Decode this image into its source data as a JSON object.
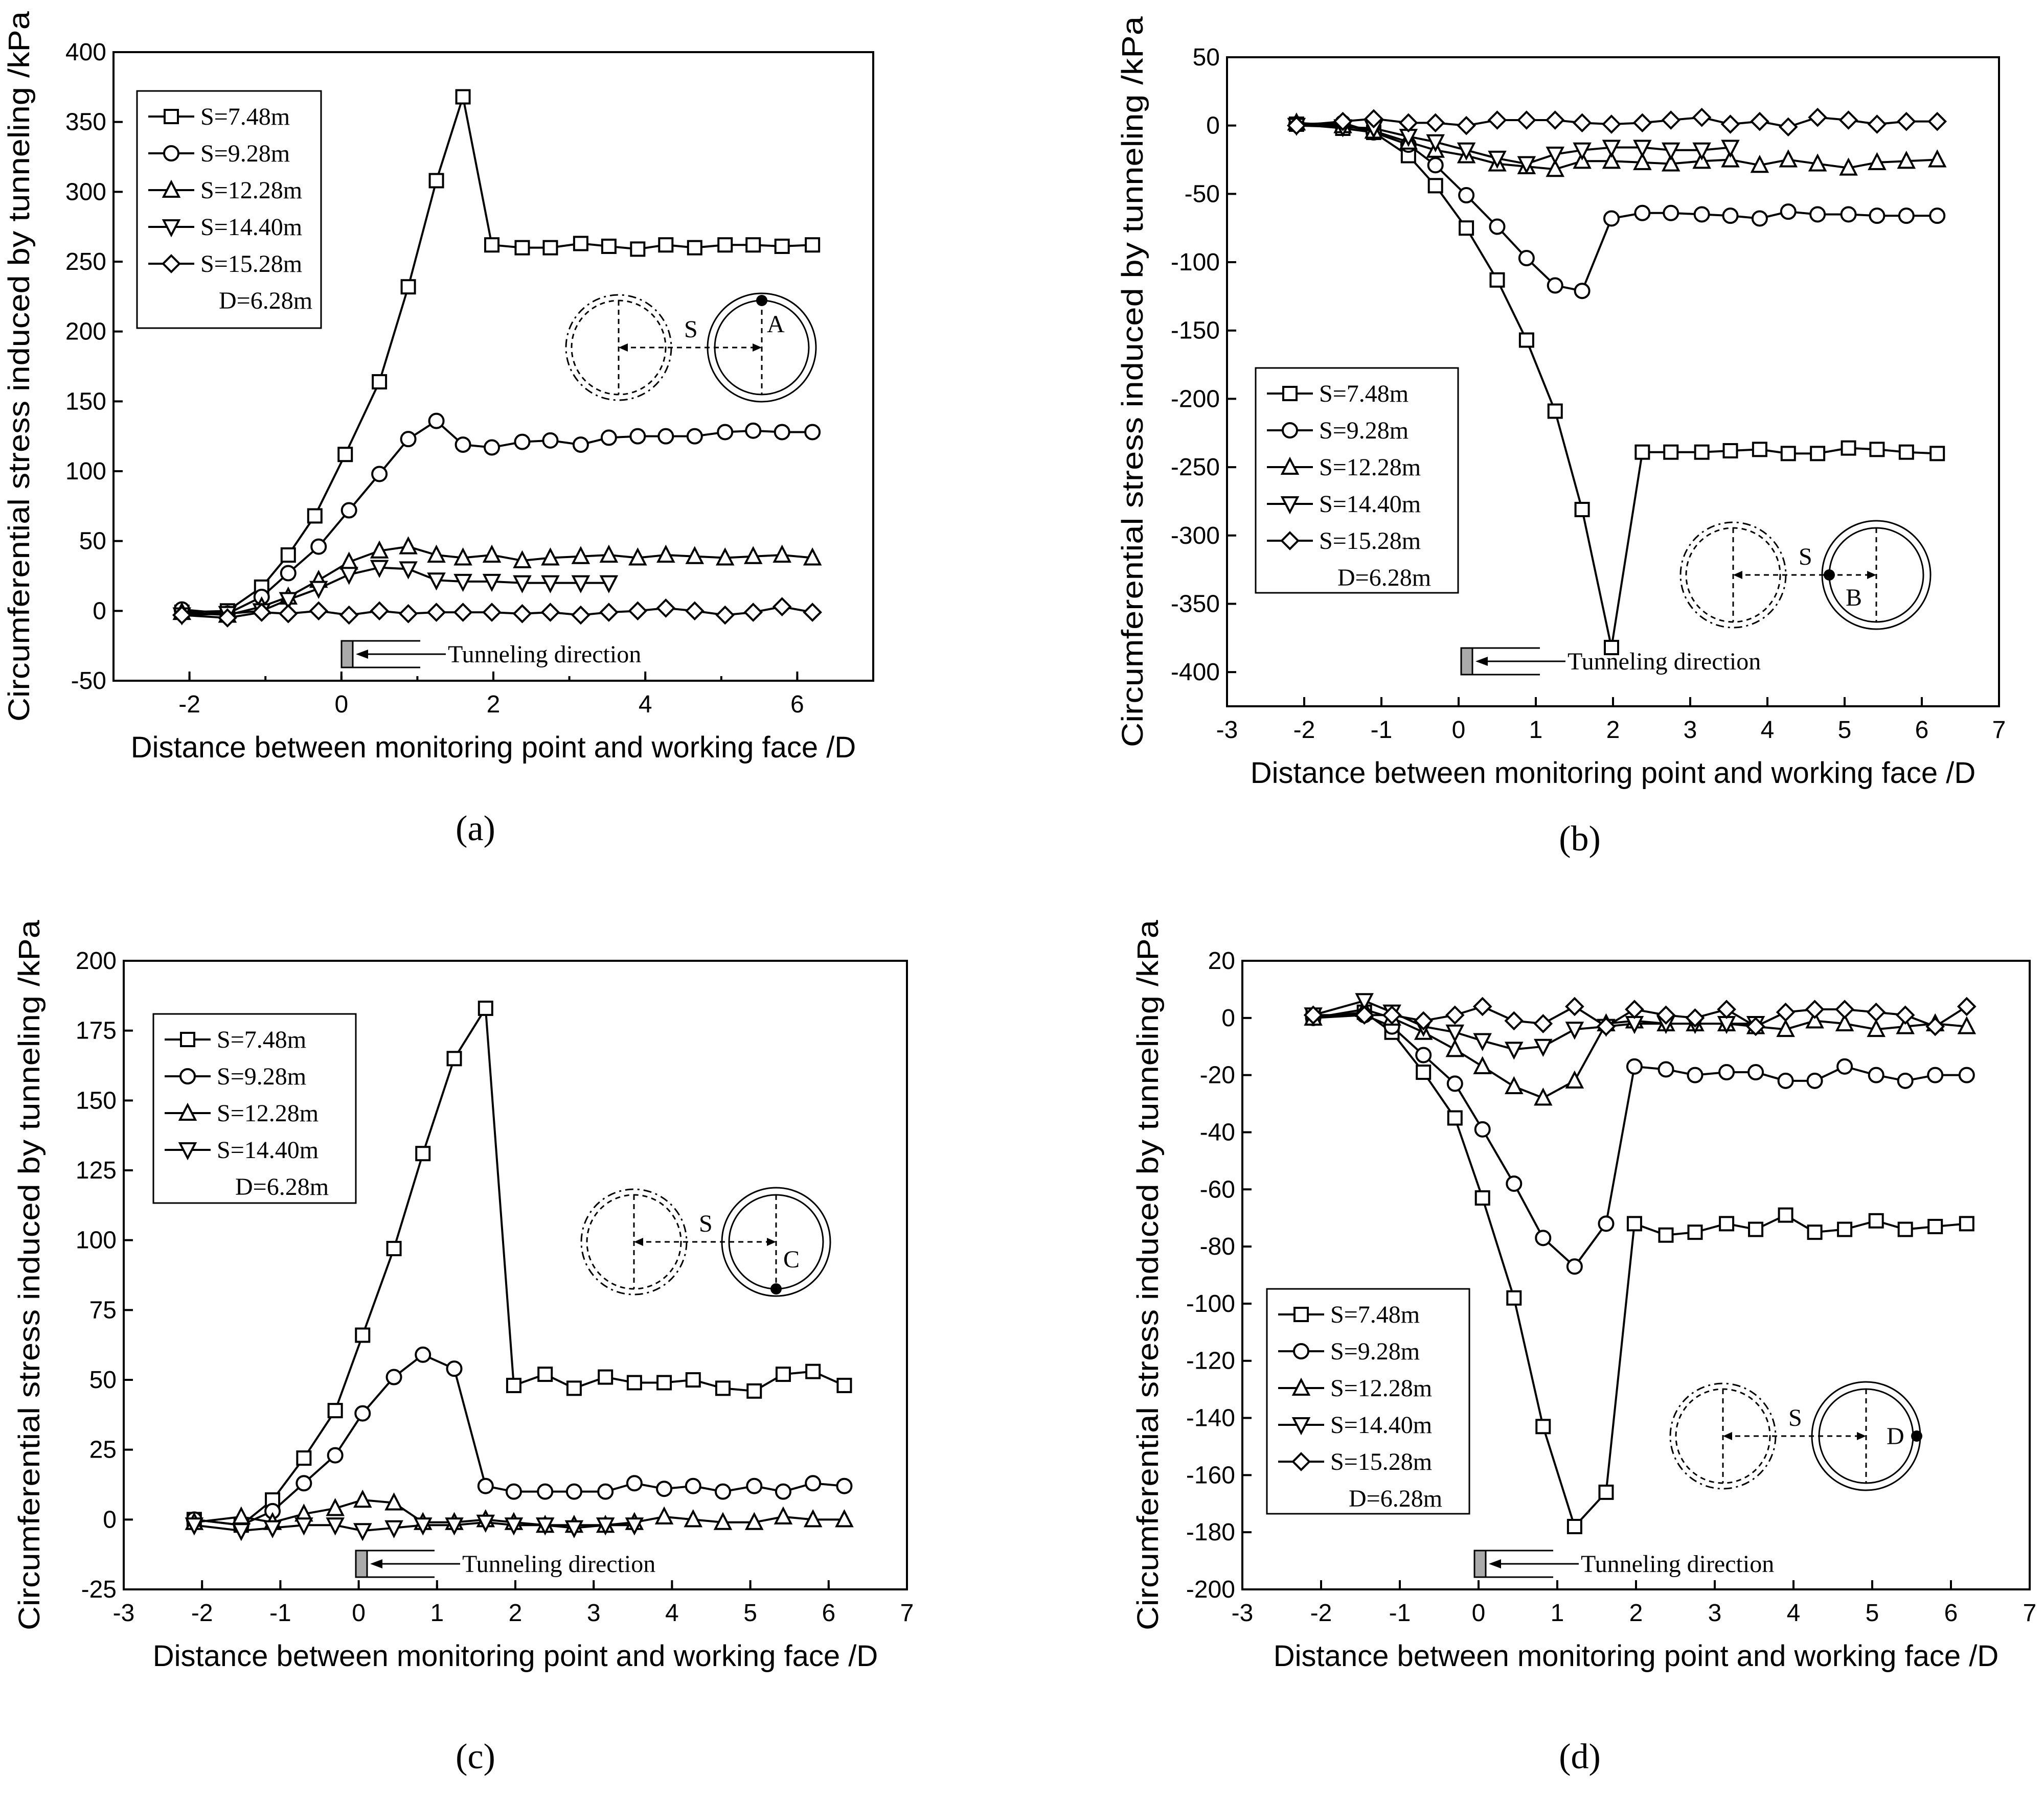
{
  "chart_data": [
    {
      "type": "line",
      "panel_label": "(a)",
      "xlabel": "Distance between monitoring point and working face /D",
      "ylabel": "Circumferential stress induced by tunneling /kPa",
      "xlim": [
        -3,
        7
      ],
      "ylim": [
        -50,
        400
      ],
      "xticks": [
        -2,
        0,
        2,
        4,
        6
      ],
      "yticks": [
        -50,
        0,
        50,
        100,
        150,
        200,
        250,
        300,
        350,
        400
      ],
      "legend": [
        "S=7.48m",
        "S=9.28m",
        "S=12.28m",
        "S=14.40m",
        "S=15.28m"
      ],
      "legend_note": "D=6.28m",
      "legend_position": "top-left",
      "inset": {
        "label_s": "S",
        "label_point": "A",
        "point_position": "top"
      },
      "direction_label": "Tunneling direction",
      "series": [
        {
          "name": "S=7.48m",
          "marker": "square",
          "x": [
            -2.1,
            -1.5,
            -1.05,
            -0.7,
            -0.35,
            0.05,
            0.5,
            0.88,
            1.25,
            1.6,
            1.98,
            2.38,
            2.75,
            3.15,
            3.52,
            3.9,
            4.27,
            4.65,
            5.05,
            5.42,
            5.8,
            6.2
          ],
          "y": [
            -1,
            0,
            17,
            40,
            68,
            112,
            164,
            232,
            308,
            368,
            262,
            260,
            260,
            263,
            261,
            259,
            262,
            260,
            262,
            262,
            261,
            262
          ]
        },
        {
          "name": "S=9.28m",
          "marker": "circle",
          "x": [
            -2.1,
            -1.5,
            -1.05,
            -0.7,
            -0.3,
            0.1,
            0.5,
            0.88,
            1.25,
            1.6,
            1.98,
            2.38,
            2.75,
            3.15,
            3.52,
            3.9,
            4.27,
            4.65,
            5.05,
            5.42,
            5.8,
            6.2
          ],
          "y": [
            1,
            -2,
            10,
            27,
            46,
            72,
            98,
            123,
            136,
            119,
            117,
            121,
            122,
            119,
            124,
            125,
            125,
            125,
            128,
            129,
            128,
            128
          ]
        },
        {
          "name": "S=12.28m",
          "marker": "triangle-up",
          "x": [
            -2.1,
            -1.5,
            -1.05,
            -0.7,
            -0.3,
            0.1,
            0.5,
            0.88,
            1.25,
            1.6,
            1.98,
            2.38,
            2.75,
            3.15,
            3.52,
            3.9,
            4.27,
            4.65,
            5.05,
            5.42,
            5.8,
            6.2
          ],
          "y": [
            -1,
            -3,
            3,
            10,
            22,
            35,
            43,
            46,
            40,
            38,
            40,
            36,
            38,
            39,
            40,
            38,
            40,
            39,
            38,
            39,
            40,
            38
          ]
        },
        {
          "name": "S=14.40m",
          "marker": "triangle-down",
          "x": [
            -2.1,
            -1.5,
            -1.05,
            -0.7,
            -0.3,
            0.1,
            0.5,
            0.88,
            1.25,
            1.6,
            1.98,
            2.38,
            2.75,
            3.15,
            3.52
          ],
          "y": [
            -3,
            -2,
            0,
            8,
            16,
            26,
            31,
            30,
            22,
            21,
            21,
            20,
            20,
            20,
            20
          ]
        },
        {
          "name": "S=15.28m",
          "marker": "diamond",
          "x": [
            -2.1,
            -1.5,
            -1.05,
            -0.7,
            -0.3,
            0.1,
            0.5,
            0.88,
            1.25,
            1.6,
            1.98,
            2.38,
            2.75,
            3.15,
            3.52,
            3.9,
            4.27,
            4.65,
            5.05,
            5.42,
            5.8,
            6.2
          ],
          "y": [
            -3,
            -5,
            -1,
            -2,
            0,
            -3,
            0,
            -2,
            -1,
            -1,
            -1,
            -2,
            -1,
            -3,
            -1,
            0,
            2,
            0,
            -3,
            -1,
            3,
            -1
          ]
        }
      ]
    },
    {
      "type": "line",
      "panel_label": "(b)",
      "xlabel": "Distance between monitoring point and working face /D",
      "ylabel": "Circumferential stress induced by tunneling /kPa",
      "xlim": [
        -3,
        7
      ],
      "ylim": [
        -425,
        50
      ],
      "xticks": [
        -3,
        -2,
        -1,
        0,
        1,
        2,
        3,
        4,
        5,
        6,
        7
      ],
      "yticks": [
        -400,
        -350,
        -300,
        -250,
        -200,
        -150,
        -100,
        -50,
        0,
        50
      ],
      "legend": [
        "S=7.48m",
        "S=9.28m",
        "S=12.28m",
        "S=14.40m",
        "S=15.28m"
      ],
      "legend_note": "D=6.28m",
      "legend_position": "lower-left",
      "inset": {
        "label_s": "S",
        "label_point": "B",
        "point_position": "left"
      },
      "direction_label": "Tunneling direction",
      "series": [
        {
          "name": "S=7.48m",
          "marker": "square",
          "x": [
            -2.1,
            -1.5,
            -1.1,
            -0.65,
            -0.3,
            0.1,
            0.5,
            0.88,
            1.25,
            1.6,
            1.98,
            2.38,
            2.75,
            3.15,
            3.52,
            3.9,
            4.27,
            4.65,
            5.05,
            5.42,
            5.8,
            6.2
          ],
          "y": [
            1,
            -2,
            -5,
            -22,
            -44,
            -75,
            -113,
            -157,
            -209,
            -281,
            -382,
            -239,
            -239,
            -239,
            -238,
            -237,
            -240,
            -240,
            -236,
            -237,
            -239,
            -240
          ]
        },
        {
          "name": "S=9.28m",
          "marker": "circle",
          "x": [
            -2.1,
            -1.5,
            -1.1,
            -0.65,
            -0.3,
            0.1,
            0.5,
            0.88,
            1.25,
            1.6,
            1.98,
            2.38,
            2.75,
            3.15,
            3.52,
            3.9,
            4.27,
            4.65,
            5.05,
            5.42,
            5.8,
            6.2
          ],
          "y": [
            1,
            2,
            -5,
            -14,
            -29,
            -51,
            -74,
            -97,
            -117,
            -121,
            -68,
            -64,
            -64,
            -65,
            -66,
            -68,
            -63,
            -65,
            -65,
            -66,
            -66,
            -66
          ]
        },
        {
          "name": "S=12.28m",
          "marker": "triangle-up",
          "x": [
            -2.1,
            -1.5,
            -1.1,
            -0.65,
            -0.3,
            0.1,
            0.5,
            0.88,
            1.25,
            1.6,
            1.98,
            2.38,
            2.75,
            3.15,
            3.52,
            3.9,
            4.27,
            4.65,
            5.05,
            5.42,
            5.8,
            6.2
          ],
          "y": [
            2,
            0,
            -4,
            -12,
            -18,
            -22,
            -28,
            -30,
            -32,
            -26,
            -26,
            -27,
            -28,
            -26,
            -25,
            -29,
            -25,
            -28,
            -31,
            -27,
            -26,
            -25
          ]
        },
        {
          "name": "S=14.40m",
          "marker": "triangle-down",
          "x": [
            -2.1,
            -1.5,
            -1.1,
            -0.65,
            -0.3,
            0.1,
            0.5,
            0.88,
            1.25,
            1.6,
            1.98,
            2.38,
            2.75,
            3.15,
            3.52
          ],
          "y": [
            0,
            -1,
            -2,
            -8,
            -12,
            -18,
            -24,
            -28,
            -21,
            -18,
            -16,
            -16,
            -18,
            -18,
            -16
          ]
        },
        {
          "name": "S=15.28m",
          "marker": "diamond",
          "x": [
            -2.1,
            -1.5,
            -1.1,
            -0.65,
            -0.3,
            0.1,
            0.5,
            0.88,
            1.25,
            1.6,
            1.98,
            2.38,
            2.75,
            3.15,
            3.52,
            3.9,
            4.27,
            4.65,
            5.05,
            5.42,
            5.8,
            6.2
          ],
          "y": [
            0,
            3,
            5,
            2,
            2,
            0,
            4,
            4,
            4,
            2,
            1,
            2,
            4,
            6,
            1,
            3,
            -1,
            6,
            4,
            1,
            3,
            3
          ]
        }
      ]
    },
    {
      "type": "line",
      "panel_label": "(c)",
      "xlabel": "Distance between monitoring point and working face /D",
      "ylabel": "Circumferential stress induced by tunneling /kPa",
      "xlim": [
        -3,
        7
      ],
      "ylim": [
        -25,
        200
      ],
      "xticks": [
        -3,
        -2,
        -1,
        0,
        1,
        2,
        3,
        4,
        5,
        6,
        7
      ],
      "yticks": [
        -25,
        0,
        25,
        50,
        75,
        100,
        125,
        150,
        175,
        200
      ],
      "legend": [
        "S=7.48m",
        "S=9.28m",
        "S=12.28m",
        "S=14.40m"
      ],
      "legend_note": "D=6.28m",
      "legend_position": "top-left",
      "inset": {
        "label_s": "S",
        "label_point": "C",
        "point_position": "bottom"
      },
      "direction_label": "Tunneling direction",
      "series": [
        {
          "name": "S=7.48m",
          "marker": "square",
          "x": [
            -2.1,
            -1.5,
            -1.1,
            -0.7,
            -0.3,
            0.05,
            0.45,
            0.82,
            1.22,
            1.62,
            1.98,
            2.38,
            2.75,
            3.15,
            3.52,
            3.9,
            4.27,
            4.65,
            5.05,
            5.42,
            5.8,
            6.2
          ],
          "y": [
            0,
            -2,
            7,
            22,
            39,
            66,
            97,
            131,
            165,
            183,
            48,
            52,
            47,
            51,
            49,
            49,
            50,
            47,
            46,
            52,
            53,
            48
          ]
        },
        {
          "name": "S=9.28m",
          "marker": "circle",
          "x": [
            -2.1,
            -1.5,
            -1.1,
            -0.7,
            -0.3,
            0.05,
            0.45,
            0.82,
            1.22,
            1.62,
            1.98,
            2.38,
            2.75,
            3.15,
            3.52,
            3.9,
            4.27,
            4.65,
            5.05,
            5.42,
            5.8,
            6.2
          ],
          "y": [
            0,
            -2,
            3,
            13,
            23,
            38,
            51,
            59,
            54,
            12,
            10,
            10,
            10,
            10,
            13,
            11,
            12,
            10,
            12,
            10,
            13,
            12
          ]
        },
        {
          "name": "S=12.28m",
          "marker": "triangle-up",
          "x": [
            -2.1,
            -1.5,
            -1.1,
            -0.7,
            -0.3,
            0.05,
            0.45,
            0.82,
            1.22,
            1.62,
            1.98,
            2.38,
            2.75,
            3.15,
            3.52,
            3.9,
            4.27,
            4.65,
            5.05,
            5.42,
            5.8,
            6.2
          ],
          "y": [
            -1,
            1,
            -1,
            2,
            4,
            7,
            6,
            -1,
            -1,
            0,
            -1,
            -2,
            -2,
            -2,
            -1,
            1,
            0,
            -1,
            -1,
            1,
            0,
            0
          ]
        },
        {
          "name": "S=14.40m",
          "marker": "triangle-down",
          "x": [
            -2.1,
            -1.5,
            -1.1,
            -0.7,
            -0.3,
            0.05,
            0.45,
            0.82,
            1.22,
            1.62,
            1.98,
            2.38,
            2.75,
            3.15,
            3.52
          ],
          "y": [
            -2,
            -4,
            -3,
            -2,
            -2,
            -4,
            -3,
            -2,
            -2,
            -1,
            -2,
            -2,
            -3,
            -2,
            -2
          ]
        }
      ]
    },
    {
      "type": "line",
      "panel_label": "(d)",
      "xlabel": "Distance between monitoring point and working face /D",
      "ylabel": "Circumferential stress induced by tunneling /kPa",
      "xlim": [
        -3,
        7
      ],
      "ylim": [
        -200,
        20
      ],
      "xticks": [
        -3,
        -2,
        -1,
        0,
        1,
        2,
        3,
        4,
        5,
        6,
        7
      ],
      "yticks": [
        -200,
        -180,
        -160,
        -140,
        -120,
        -100,
        -80,
        -60,
        -40,
        -20,
        0,
        20
      ],
      "legend": [
        "S=7.48m",
        "S=9.28m",
        "S=12.28m",
        "S=14.40m",
        "S=15.28m"
      ],
      "legend_note": "D=6.28m",
      "legend_position": "lower-left",
      "inset": {
        "label_s": "S",
        "label_point": "D",
        "point_position": "right"
      },
      "direction_label": "Tunneling direction",
      "series": [
        {
          "name": "S=7.48m",
          "marker": "square",
          "x": [
            -2.1,
            -1.45,
            -1.1,
            -0.7,
            -0.3,
            0.05,
            0.45,
            0.82,
            1.22,
            1.62,
            1.98,
            2.38,
            2.75,
            3.15,
            3.52,
            3.9,
            4.27,
            4.65,
            5.05,
            5.42,
            5.8,
            6.2
          ],
          "y": [
            0,
            2,
            -5,
            -19,
            -35,
            -63,
            -98,
            -143,
            -178,
            -166,
            -72,
            -76,
            -75,
            -72,
            -74,
            -69,
            -75,
            -74,
            -71,
            -74,
            -73,
            -72
          ]
        },
        {
          "name": "S=9.28m",
          "marker": "circle",
          "x": [
            -2.1,
            -1.45,
            -1.1,
            -0.7,
            -0.3,
            0.05,
            0.45,
            0.82,
            1.22,
            1.62,
            1.98,
            2.38,
            2.75,
            3.15,
            3.52,
            3.9,
            4.27,
            4.65,
            5.05,
            5.42,
            5.8,
            6.2
          ],
          "y": [
            0,
            1,
            -3,
            -13,
            -23,
            -39,
            -58,
            -77,
            -87,
            -72,
            -17,
            -18,
            -20,
            -19,
            -19,
            -22,
            -22,
            -17,
            -20,
            -22,
            -20,
            -20
          ]
        },
        {
          "name": "S=12.28m",
          "marker": "triangle-up",
          "x": [
            -2.1,
            -1.45,
            -1.1,
            -0.7,
            -0.3,
            0.05,
            0.45,
            0.82,
            1.22,
            1.62,
            1.98,
            2.38,
            2.75,
            3.15,
            3.52,
            3.9,
            4.27,
            4.65,
            5.05,
            5.42,
            5.8,
            6.2
          ],
          "y": [
            0,
            3,
            0,
            -5,
            -11,
            -17,
            -24,
            -28,
            -22,
            -2,
            -1,
            -2,
            -2,
            -2,
            -3,
            -4,
            -1,
            -2,
            -4,
            -3,
            -2,
            -3
          ]
        },
        {
          "name": "S=14.40m",
          "marker": "triangle-down",
          "x": [
            -2.1,
            -1.45,
            -1.1,
            -0.7,
            -0.3,
            0.05,
            0.45,
            0.82,
            1.22,
            1.62,
            1.98,
            2.38,
            2.75,
            3.15,
            3.52
          ],
          "y": [
            1,
            6,
            2,
            -3,
            -5,
            -8,
            -11,
            -10,
            -4,
            -3,
            -2,
            -2,
            -2,
            -2,
            -2
          ]
        },
        {
          "name": "S=15.28m",
          "marker": "diamond",
          "x": [
            -2.1,
            -1.45,
            -1.1,
            -0.7,
            -0.3,
            0.05,
            0.45,
            0.82,
            1.22,
            1.62,
            1.98,
            2.38,
            2.75,
            3.15,
            3.52,
            3.9,
            4.27,
            4.65,
            5.05,
            5.42,
            5.8,
            6.2
          ],
          "y": [
            1,
            1,
            1,
            -1,
            1,
            4,
            -1,
            -2,
            4,
            -3,
            3,
            1,
            0,
            3,
            -3,
            2,
            3,
            3,
            2,
            1,
            -3,
            4
          ]
        }
      ]
    }
  ]
}
